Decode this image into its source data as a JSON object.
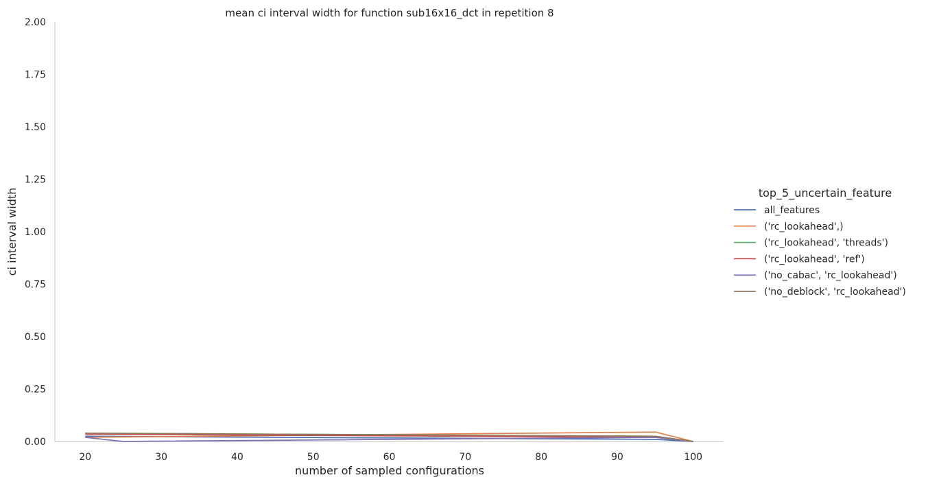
{
  "chart_data": {
    "type": "line",
    "title": "mean ci interval width for function sub16x16_dct in repetition 8",
    "xlabel": "number of sampled configurations",
    "ylabel": "ci interval width",
    "xlim": [
      16,
      104
    ],
    "ylim": [
      0,
      2.0
    ],
    "x_ticks": [
      20,
      30,
      40,
      50,
      60,
      70,
      80,
      90,
      100
    ],
    "y_ticks": [
      "0.00",
      "0.25",
      "0.50",
      "0.75",
      "1.00",
      "1.25",
      "1.50",
      "1.75",
      "2.00"
    ],
    "grid": false,
    "legend": {
      "title": "top_5_uncertain_feature",
      "placement": "right"
    },
    "series": [
      {
        "name": "all_features",
        "color": "#4c72b0",
        "x": [
          20,
          95,
          100
        ],
        "y": [
          0.025,
          0.01,
          0.0
        ]
      },
      {
        "name": "('rc_lookahead',)",
        "color": "#dd8452",
        "x": [
          20,
          95,
          100
        ],
        "y": [
          0.02,
          0.045,
          0.0
        ]
      },
      {
        "name": "('rc_lookahead', 'threads')",
        "color": "#55a868",
        "x": [
          20,
          95,
          100
        ],
        "y": [
          0.04,
          0.025,
          0.0
        ]
      },
      {
        "name": "('rc_lookahead', 'ref')",
        "color": "#c44e52",
        "x": [
          20,
          95,
          100
        ],
        "y": [
          0.035,
          0.02,
          0.0
        ]
      },
      {
        "name": "('no_cabac', 'rc_lookahead')",
        "color": "#8172b3",
        "x": [
          20,
          25,
          95,
          100
        ],
        "y": [
          0.02,
          0.0,
          0.02,
          0.0
        ]
      },
      {
        "name": "('no_deblock', 'rc_lookahead')",
        "color": "#937860",
        "x": [
          20,
          95,
          100
        ],
        "y": [
          0.04,
          0.025,
          0.0
        ]
      }
    ]
  }
}
